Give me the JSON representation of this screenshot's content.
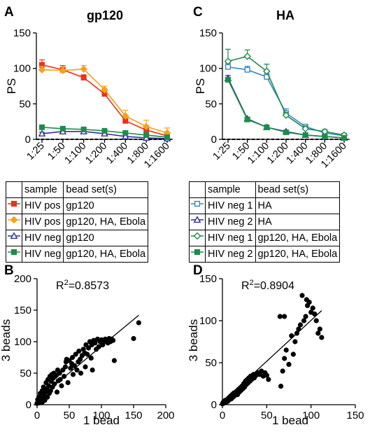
{
  "panels": [
    {
      "letter": "A",
      "title": "gp120",
      "chart_data": {
        "type": "line",
        "title": "gp120",
        "xlabel": "",
        "ylabel": "PS",
        "categories": [
          "1:25",
          "1:50",
          "1:100",
          "1:200",
          "1:400",
          "1:800",
          "1:1600"
        ],
        "ylim": [
          0,
          150
        ],
        "yticks": [
          0,
          50,
          100,
          150
        ],
        "series": [
          {
            "name": "HIV pos gp120",
            "color": "#e8321e",
            "marker": "square",
            "filled": true,
            "values": [
              105,
              98,
              87,
              64,
              26,
              13,
              5
            ],
            "errors": [
              7,
              6,
              4,
              5,
              6,
              5,
              3
            ]
          },
          {
            "name": "HIV pos gp120, HA, Ebola",
            "color": "#f5a21b",
            "marker": "diamond",
            "filled": true,
            "values": [
              98,
              97,
              99,
              70,
              33,
              18,
              9
            ],
            "errors": [
              5,
              5,
              5,
              5,
              8,
              9,
              7
            ]
          },
          {
            "name": "HIV neg gp120",
            "color": "#2e3192",
            "marker": "triangle",
            "filled": false,
            "values": [
              8,
              11,
              11,
              8,
              4,
              2,
              1
            ],
            "errors": [
              2,
              3,
              4,
              2,
              2,
              1,
              1
            ]
          },
          {
            "name": "HIV neg gp120, HA, Ebola",
            "color": "#1d8c4a",
            "marker": "square",
            "filled": true,
            "values": [
              17,
              15,
              14,
              12,
              9,
              6,
              3
            ],
            "errors": [
              3,
              3,
              3,
              2,
              2,
              2,
              1
            ]
          }
        ]
      },
      "legend": {
        "headers": [
          "sample",
          "bead set(s)"
        ],
        "rows": [
          {
            "sample": "HIV pos",
            "beads": "gp120",
            "color": "#e8321e",
            "marker": "square",
            "filled": true
          },
          {
            "sample": "HIV pos",
            "beads": "gp120, HA, Ebola",
            "color": "#f5a21b",
            "marker": "diamond",
            "filled": true
          },
          {
            "sample": "HIV neg",
            "beads": "gp120",
            "color": "#2e3192",
            "marker": "triangle",
            "filled": false
          },
          {
            "sample": "HIV neg",
            "beads": "gp120, HA, Ebola",
            "color": "#1d8c4a",
            "marker": "square",
            "filled": true
          }
        ]
      }
    },
    {
      "letter": "C",
      "title": "HA",
      "chart_data": {
        "type": "line",
        "title": "HA",
        "xlabel": "",
        "ylabel": "PS",
        "categories": [
          "1:25",
          "1:50",
          "1:100",
          "1:200",
          "1:400",
          "1:800",
          "1:1600"
        ],
        "ylim": [
          0,
          150
        ],
        "yticks": [
          0,
          50,
          100,
          150
        ],
        "series": [
          {
            "name": "HIV neg 1 HA",
            "color": "#3a86c8",
            "marker": "square",
            "filled": false,
            "values": [
              102,
              98,
              88,
              37,
              18,
              9,
              5
            ],
            "errors": [
              5,
              5,
              5,
              6,
              3,
              3,
              2
            ]
          },
          {
            "name": "HIV neg 2 HA",
            "color": "#2e3192",
            "marker": "triangle",
            "filled": false,
            "values": [
              86,
              29,
              17,
              11,
              6,
              4,
              2
            ],
            "errors": [
              4,
              2,
              2,
              2,
              1,
              1,
              1
            ]
          },
          {
            "name": "HIV neg 1 gp120, HA, Ebola",
            "color": "#1d8c4a",
            "marker": "diamond",
            "filled": false,
            "values": [
              110,
              117,
              96,
              34,
              15,
              11,
              6
            ],
            "errors": [
              17,
              9,
              10,
              4,
              4,
              3,
              2
            ]
          },
          {
            "name": "HIV neg 2 gp120, HA, Ebola",
            "color": "#1d8c4a",
            "marker": "square",
            "filled": true,
            "values": [
              84,
              28,
              17,
              10,
              6,
              4,
              2
            ],
            "errors": [
              3,
              2,
              2,
              2,
              1,
              1,
              1
            ]
          }
        ]
      },
      "legend": {
        "headers": [
          "sample",
          "bead set(s)"
        ],
        "rows": [
          {
            "sample": "HIV neg 1",
            "beads": "HA",
            "color": "#3a86c8",
            "marker": "square",
            "filled": false
          },
          {
            "sample": "HIV neg 2",
            "beads": "HA",
            "color": "#2e3192",
            "marker": "triangle",
            "filled": false
          },
          {
            "sample": "HIV neg 1",
            "beads": "gp120, HA, Ebola",
            "color": "#1d8c4a",
            "marker": "diamond",
            "filled": false
          },
          {
            "sample": "HIV neg 2",
            "beads": "gp120, HA, Ebola",
            "color": "#1d8c4a",
            "marker": "square",
            "filled": true
          }
        ]
      }
    },
    {
      "letter": "B",
      "chart_data": {
        "type": "scatter",
        "xlabel": "1 bead",
        "ylabel": "3 beads",
        "annotation": {
          "prefix": "R",
          "sup": "2",
          "rest": "=0.8573"
        },
        "xlim": [
          0,
          200
        ],
        "ylim": [
          0,
          200
        ],
        "xticks": [
          0,
          50,
          100,
          150,
          200
        ],
        "yticks": [
          0,
          50,
          100,
          150,
          200
        ],
        "fit_line": {
          "x": [
            0,
            158
          ],
          "y": [
            8,
            142
          ]
        },
        "points": [
          [
            0,
            2
          ],
          [
            1,
            8
          ],
          [
            2,
            5
          ],
          [
            3,
            12
          ],
          [
            4,
            3
          ],
          [
            5,
            9
          ],
          [
            5,
            18
          ],
          [
            6,
            6
          ],
          [
            7,
            14
          ],
          [
            8,
            22
          ],
          [
            8,
            4
          ],
          [
            9,
            11
          ],
          [
            10,
            28
          ],
          [
            11,
            16
          ],
          [
            12,
            7
          ],
          [
            13,
            20
          ],
          [
            14,
            35
          ],
          [
            15,
            25
          ],
          [
            16,
            12
          ],
          [
            17,
            40
          ],
          [
            18,
            30
          ],
          [
            19,
            18
          ],
          [
            20,
            45
          ],
          [
            21,
            22
          ],
          [
            22,
            37
          ],
          [
            23,
            48
          ],
          [
            24,
            28
          ],
          [
            25,
            42
          ],
          [
            26,
            50
          ],
          [
            27,
            33
          ],
          [
            28,
            45
          ],
          [
            30,
            47
          ],
          [
            31,
            20
          ],
          [
            32,
            55
          ],
          [
            33,
            38
          ],
          [
            35,
            50
          ],
          [
            36,
            40
          ],
          [
            38,
            30
          ],
          [
            40,
            55
          ],
          [
            42,
            45
          ],
          [
            44,
            60
          ],
          [
            45,
            68
          ],
          [
            46,
            72
          ],
          [
            48,
            35
          ],
          [
            50,
            70
          ],
          [
            52,
            58
          ],
          [
            54,
            65
          ],
          [
            55,
            75
          ],
          [
            56,
            48
          ],
          [
            58,
            62
          ],
          [
            60,
            80
          ],
          [
            62,
            55
          ],
          [
            64,
            68
          ],
          [
            65,
            85
          ],
          [
            67,
            72
          ],
          [
            68,
            50
          ],
          [
            70,
            78
          ],
          [
            72,
            88
          ],
          [
            74,
            82
          ],
          [
            75,
            60
          ],
          [
            76,
            95
          ],
          [
            78,
            80
          ],
          [
            80,
            90
          ],
          [
            82,
            100
          ],
          [
            84,
            74
          ],
          [
            85,
            95
          ],
          [
            86,
            55
          ],
          [
            88,
            102
          ],
          [
            90,
            98
          ],
          [
            92,
            88
          ],
          [
            94,
            104
          ],
          [
            96,
            92
          ],
          [
            98,
            100
          ],
          [
            100,
            103
          ],
          [
            102,
            95
          ],
          [
            104,
            100
          ],
          [
            106,
            104
          ],
          [
            108,
            102
          ],
          [
            110,
            98
          ],
          [
            112,
            105
          ],
          [
            114,
            100
          ],
          [
            116,
            104
          ],
          [
            118,
            102
          ],
          [
            120,
            70
          ],
          [
            150,
            105
          ],
          [
            158,
            130
          ]
        ]
      }
    },
    {
      "letter": "D",
      "chart_data": {
        "type": "scatter",
        "xlabel": "1 bead",
        "ylabel": "3 beads",
        "annotation": {
          "prefix": "R",
          "sup": "2",
          "rest": "=0.8904"
        },
        "xlim": [
          0,
          150
        ],
        "ylim": [
          0,
          150
        ],
        "xticks": [
          0,
          50,
          100,
          150
        ],
        "yticks": [
          0,
          50,
          100,
          150
        ],
        "fit_line": {
          "x": [
            0,
            112
          ],
          "y": [
            3,
            112
          ]
        },
        "points": [
          [
            0,
            1
          ],
          [
            1,
            3
          ],
          [
            2,
            2
          ],
          [
            3,
            5
          ],
          [
            4,
            3
          ],
          [
            5,
            6
          ],
          [
            6,
            4
          ],
          [
            7,
            8
          ],
          [
            8,
            6
          ],
          [
            9,
            10
          ],
          [
            10,
            7
          ],
          [
            11,
            12
          ],
          [
            12,
            9
          ],
          [
            13,
            14
          ],
          [
            14,
            11
          ],
          [
            15,
            13
          ],
          [
            16,
            16
          ],
          [
            17,
            12
          ],
          [
            18,
            18
          ],
          [
            19,
            15
          ],
          [
            20,
            20
          ],
          [
            21,
            17
          ],
          [
            22,
            22
          ],
          [
            23,
            19
          ],
          [
            24,
            25
          ],
          [
            25,
            21
          ],
          [
            26,
            28
          ],
          [
            27,
            24
          ],
          [
            28,
            30
          ],
          [
            29,
            26
          ],
          [
            30,
            32
          ],
          [
            31,
            28
          ],
          [
            32,
            34
          ],
          [
            33,
            30
          ],
          [
            35,
            36
          ],
          [
            36,
            32
          ],
          [
            38,
            35
          ],
          [
            40,
            38
          ],
          [
            42,
            36
          ],
          [
            44,
            40
          ],
          [
            46,
            34
          ],
          [
            48,
            38
          ],
          [
            50,
            35
          ],
          [
            52,
            30
          ],
          [
            65,
            105
          ],
          [
            66,
            22
          ],
          [
            68,
            40
          ],
          [
            70,
            55
          ],
          [
            72,
            65
          ],
          [
            75,
            48
          ],
          [
            78,
            82
          ],
          [
            80,
            60
          ],
          [
            82,
            75
          ],
          [
            84,
            85
          ],
          [
            86,
            90
          ],
          [
            88,
            95
          ],
          [
            90,
            130
          ],
          [
            92,
            100
          ],
          [
            94,
            105
          ],
          [
            95,
            125
          ],
          [
            96,
            118
          ],
          [
            98,
            122
          ],
          [
            100,
            110
          ],
          [
            102,
            115
          ],
          [
            104,
            108
          ],
          [
            106,
            100
          ],
          [
            108,
            85
          ],
          [
            110,
            90
          ],
          [
            112,
            80
          ],
          [
            70,
            105
          ]
        ]
      }
    }
  ]
}
